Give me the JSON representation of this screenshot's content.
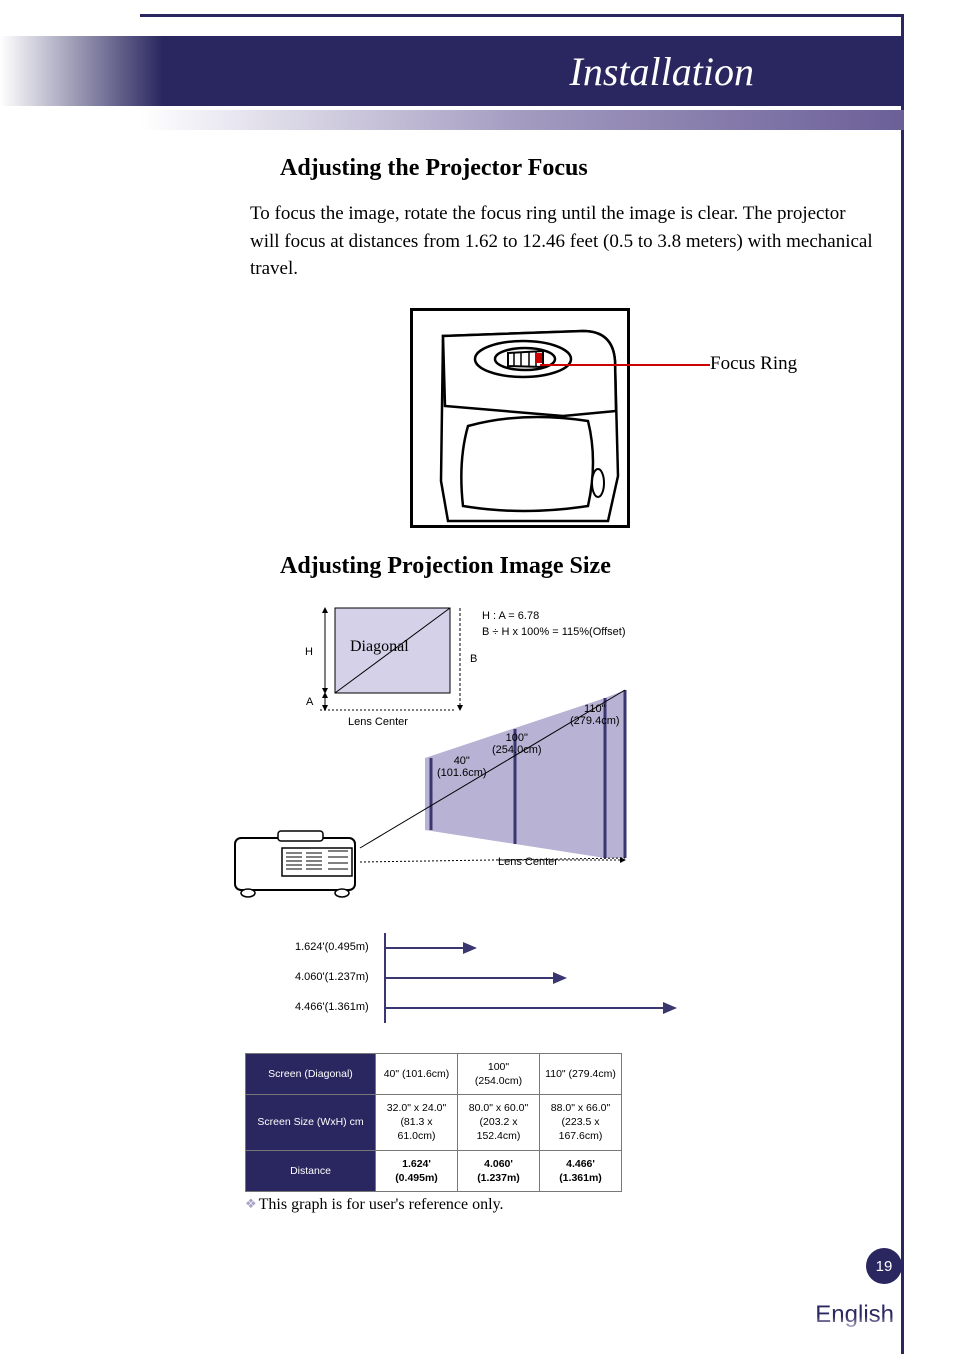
{
  "header": {
    "title": "Installation"
  },
  "section1": {
    "heading": "Adjusting the Projector Focus",
    "body": "To focus the image, rotate the focus ring until the image is clear. The projector will focus at distances from 1.62 to 12.46 feet (0.5 to 3.8 meters) with mechanical travel.",
    "figure_label": "Focus Ring"
  },
  "section2": {
    "heading": "Adjusting Projection Image Size",
    "diagram": {
      "formula1": "H : A = 6.78",
      "formula2": "B ÷ H x 100% = 115%(Offset)",
      "label_H": "H",
      "label_A": "A",
      "label_B": "B",
      "label_diagonal": "Diagonal",
      "label_lens_center": "Lens Center",
      "screens": [
        {
          "size": "40\"",
          "cm": "(101.6cm)"
        },
        {
          "size": "100\"",
          "cm": "(254.0cm)"
        },
        {
          "size": "110\"",
          "cm": "(279.4cm)"
        }
      ],
      "diagonal_fill": "#d5d1e8",
      "screen_fill": "#b8b2d4",
      "line_color": "#3a3670"
    },
    "distances": {
      "bar_color": "#3a3670",
      "rows": [
        {
          "label": "1.624'(0.495m)",
          "length": 90
        },
        {
          "label": "4.060'(1.237m)",
          "length": 180
        },
        {
          "label": "4.466'(1.361m)",
          "length": 290
        }
      ]
    },
    "table": {
      "header_bg": "#2a2760",
      "rows": [
        {
          "head": "Screen (Diagonal)",
          "cells": [
            "40\" (101.6cm)",
            "100\" (254.0cm)",
            "110\" (279.4cm)"
          ]
        },
        {
          "head": "Screen Size (WxH) cm",
          "cells": [
            "32.0\" x 24.0\"\n(81.3 x 61.0cm)",
            "80.0\" x 60.0\"\n(203.2 x 152.4cm)",
            "88.0\" x 66.0\"\n(223.5 x 167.6cm)"
          ]
        },
        {
          "head": "Distance",
          "cells": [
            "1.624' (0.495m)",
            "4.060' (1.237m)",
            "4.466' (1.361m)"
          ],
          "bold": true
        }
      ]
    },
    "note": "This graph is for user's reference only."
  },
  "footer": {
    "page": "19",
    "language": "English"
  }
}
